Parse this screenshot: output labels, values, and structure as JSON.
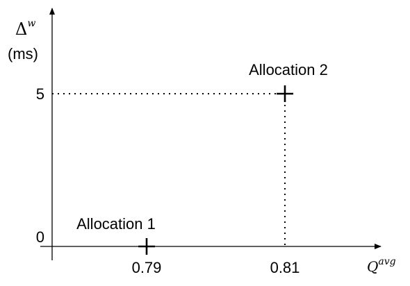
{
  "chart_data": {
    "type": "scatter",
    "title": "",
    "xlabel": {
      "symbol": "Q",
      "superscript": "avg"
    },
    "ylabel": {
      "symbol": "Δ",
      "superscript": "w",
      "unit": "(ms)"
    },
    "x_ticks": [
      {
        "value": 0.79,
        "label": "0.79"
      },
      {
        "value": 0.81,
        "label": "0.81"
      }
    ],
    "y_ticks": [
      {
        "value": 0,
        "label": "0"
      },
      {
        "value": 5,
        "label": "5"
      }
    ],
    "points": [
      {
        "label": "Allocation 1",
        "x": 0.79,
        "y": 0
      },
      {
        "label": "Allocation 2",
        "x": 0.81,
        "y": 5
      }
    ],
    "guides": "dotted projections from Allocation 2 to both axes",
    "grid": false,
    "legend": "none"
  }
}
